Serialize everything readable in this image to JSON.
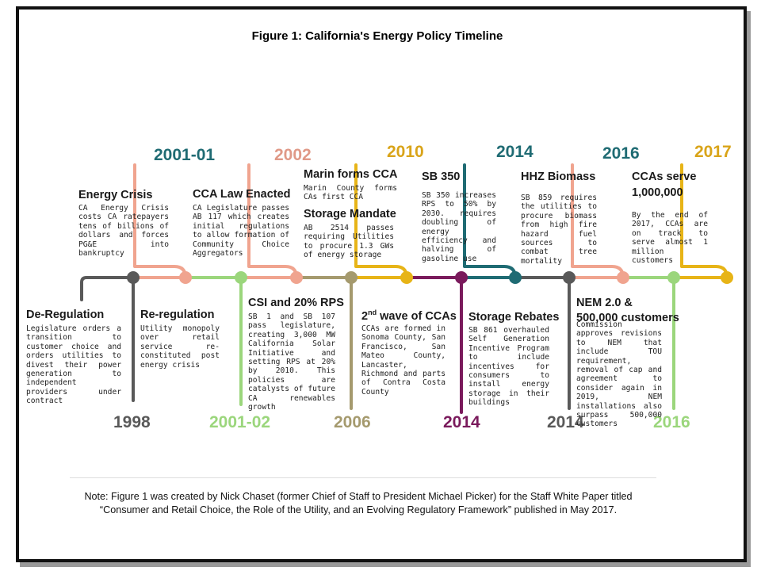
{
  "figure": {
    "title": "Figure 1: California's Energy Policy Timeline",
    "note_line1": "Note: Figure 1 was created by Nick Chaset (former Chief of Staff to President Michael Picker) for the Staff White Paper titled",
    "note_line2": "“Consumer and Retail Choice, the Role of the Utility, and an Evolving Regulatory Framework” published in May 2017."
  },
  "colors": {
    "gray": "#595959",
    "salmon": "#f0a48f",
    "green": "#9bd67c",
    "olive": "#a59a6e",
    "gold": "#e7b417",
    "plum": "#7a1a5c",
    "teal": "#1f6b73",
    "year_2002": "#e09987",
    "year_2010": "#d9a419"
  },
  "years": {
    "y1998": "1998",
    "y2001_01": "2001-01",
    "y2001_02": "2001-02",
    "y2002": "2002",
    "y2006": "2006",
    "y2010": "2010",
    "y2014_plum": "2014",
    "y2014_teal": "2014",
    "y2014_gray": "2014",
    "y2016_salmon": "2016",
    "y2016_green": "2016",
    "y2017": "2017"
  },
  "events": {
    "deregulation": {
      "title": "De-Regulation",
      "body": "Legislature orders a transition to customer choice and orders utilities to divest their power generation to independent providers under contract"
    },
    "energy_crisis": {
      "title": "Energy Crisis",
      "body": "CA Energy Crisis costs CA ratepayers tens of billions of dollars and forces PG&E into bankruptcy"
    },
    "reregulation": {
      "title": "Re-regulation",
      "body": "Utility monopoly over retail service re-constituted post energy crisis"
    },
    "cca_law": {
      "title": "CCA Law Enacted",
      "body": "CA Legislature passes AB 117 which creates initial regulations to allow formation of Community Choice Aggregators"
    },
    "csi_rps": {
      "title": "CSI and 20% RPS",
      "body": "SB 1 and SB 107 pass legislature, creating 3,000 MW California Solar Initiative and setting RPS at 20% by 2010. This policies are catalysts of future CA renewables growth"
    },
    "marin": {
      "title": "Marin forms CCA",
      "body": "Marin County forms CAs first CCA"
    },
    "storage_mandate": {
      "title": "Storage Mandate",
      "body": "AB 2514 passes requiring Utilities to procure 1.3 GWs of energy storage"
    },
    "second_wave": {
      "title_prefix": "2",
      "title_sup": "nd",
      "title_rest": " wave of CCAs",
      "body": "CCAs are formed in Sonoma County, San Francisco, San Mateo County, Lancaster, Richmond and parts of Contra Costa County"
    },
    "sb350": {
      "title": "SB 350",
      "body": "SB 350 increases RPS to 50% by 2030. requires doubling of energy efficiency and halving of gasoline use"
    },
    "storage_rebates": {
      "title": "Storage Rebates",
      "body": "SB 861 overhauled Self Generation Incentive Program to include incentives for consumers to install energy storage in their buildings"
    },
    "hhz": {
      "title": "HHZ Biomass",
      "body": "SB 859 requires the utilities to procure biomass from high fire hazard fuel sources to combat tree mortality"
    },
    "nem": {
      "title_line1": "NEM 2.0 &",
      "title_line2": "500,000 customers",
      "body": "Commission approves revisions to NEM that include TOU requirement, removal of cap and agreement to consider again in 2019, NEM installations also surpass 500,000 customers"
    },
    "ccas_serve": {
      "title_line1": "CCAs serve",
      "title_line2": "1,000,000",
      "body": "By the end of 2017, CCAs are on track to serve almost 1 million customers"
    }
  }
}
